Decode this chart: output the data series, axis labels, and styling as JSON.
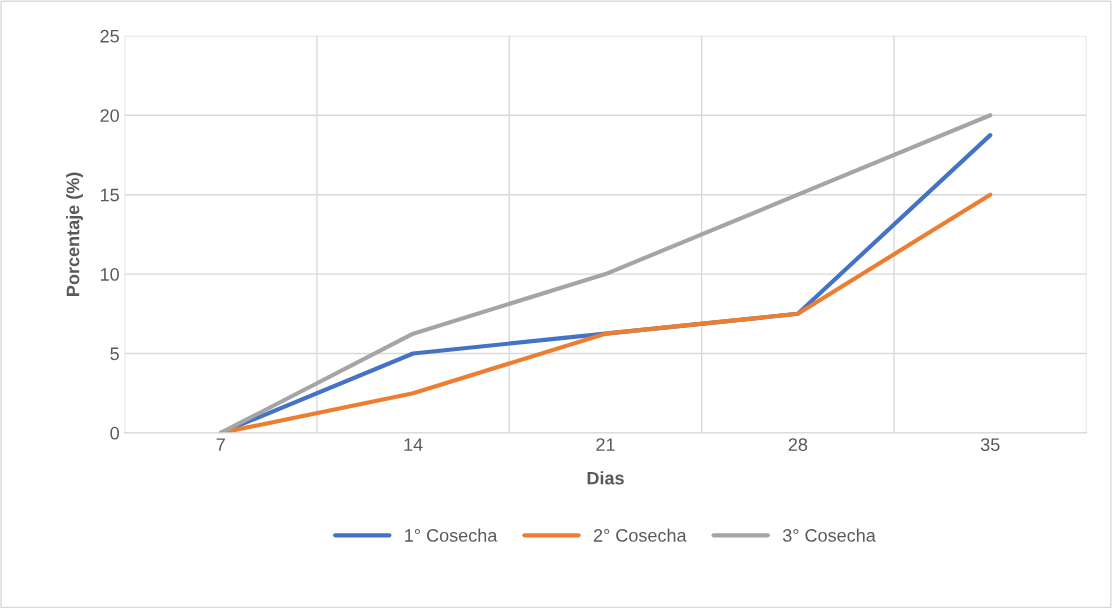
{
  "chart_data": {
    "type": "line",
    "xlabel": "Dias",
    "ylabel": "Porcentaje (%)",
    "categories": [
      "7",
      "14",
      "21",
      "28",
      "35"
    ],
    "series": [
      {
        "name": "1° Cosecha",
        "color": "#4472c4",
        "values": [
          0,
          5,
          6.25,
          7.5,
          18.75
        ]
      },
      {
        "name": "2° Cosecha",
        "color": "#ed7d31",
        "values": [
          0,
          2.5,
          6.25,
          7.5,
          15
        ]
      },
      {
        "name": "3° Cosecha",
        "color": "#a5a5a5",
        "values": [
          0,
          6.25,
          10,
          15,
          20
        ]
      }
    ],
    "ylim": [
      0,
      25
    ],
    "yticks": [
      0,
      5,
      10,
      15,
      20,
      25
    ],
    "grid": true,
    "legend": "bottom",
    "marker": "none",
    "line_style": "solid"
  }
}
